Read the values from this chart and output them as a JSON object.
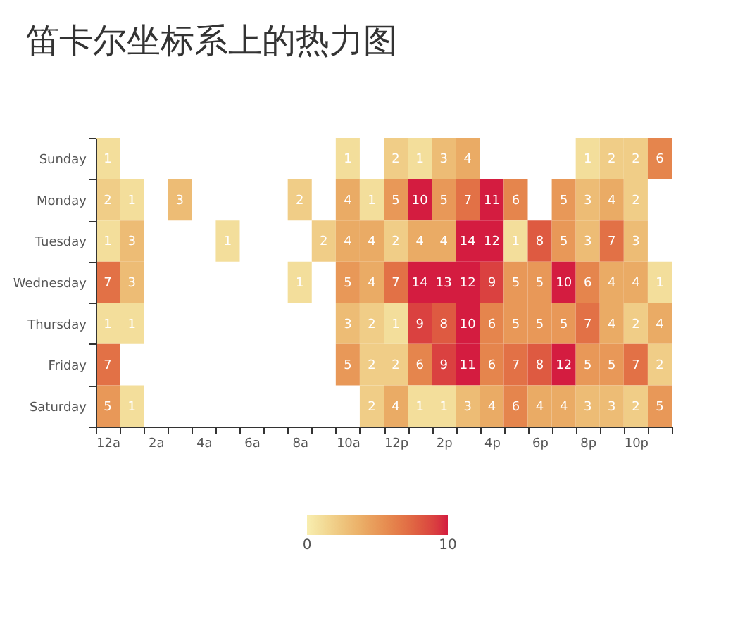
{
  "chart_data": {
    "type": "heatmap",
    "title": "笛卡尔坐标系上的热力图",
    "categories": [
      "12a",
      null,
      "2a",
      null,
      "4a",
      null,
      "6a",
      null,
      "8a",
      null,
      "10a",
      null,
      "12p",
      null,
      "2p",
      null,
      "4p",
      null,
      "6p",
      null,
      "8p",
      null,
      "10p",
      null
    ],
    "y_categories": [
      "Sunday",
      "Monday",
      "Tuesday",
      "Wednesday",
      "Thursday",
      "Friday",
      "Saturday"
    ],
    "cells": [
      [
        1,
        null,
        null,
        null,
        null,
        null,
        null,
        null,
        null,
        null,
        1,
        null,
        2,
        1,
        3,
        4,
        null,
        null,
        null,
        null,
        1,
        2,
        2,
        6
      ],
      [
        2,
        1,
        null,
        3,
        null,
        null,
        null,
        null,
        2,
        null,
        4,
        1,
        5,
        10,
        5,
        7,
        11,
        6,
        null,
        5,
        3,
        4,
        2,
        null
      ],
      [
        1,
        3,
        null,
        null,
        null,
        1,
        null,
        null,
        null,
        2,
        4,
        4,
        2,
        4,
        4,
        14,
        12,
        1,
        8,
        5,
        3,
        7,
        3,
        null
      ],
      [
        7,
        3,
        null,
        null,
        null,
        null,
        null,
        null,
        1,
        null,
        5,
        4,
        7,
        14,
        13,
        12,
        9,
        5,
        5,
        10,
        6,
        4,
        4,
        1
      ],
      [
        1,
        1,
        null,
        null,
        null,
        null,
        null,
        null,
        null,
        null,
        3,
        2,
        1,
        9,
        8,
        10,
        6,
        5,
        5,
        5,
        7,
        4,
        2,
        4
      ],
      [
        7,
        null,
        null,
        null,
        null,
        null,
        null,
        null,
        null,
        null,
        5,
        2,
        2,
        6,
        9,
        11,
        6,
        7,
        8,
        12,
        5,
        5,
        7,
        2
      ],
      [
        5,
        1,
        null,
        null,
        null,
        null,
        null,
        null,
        null,
        null,
        null,
        2,
        4,
        1,
        1,
        3,
        4,
        6,
        4,
        4,
        3,
        3,
        2,
        5
      ]
    ],
    "clim": [
      0,
      10
    ],
    "cticks": [
      0,
      10
    ],
    "data_labels": true
  }
}
